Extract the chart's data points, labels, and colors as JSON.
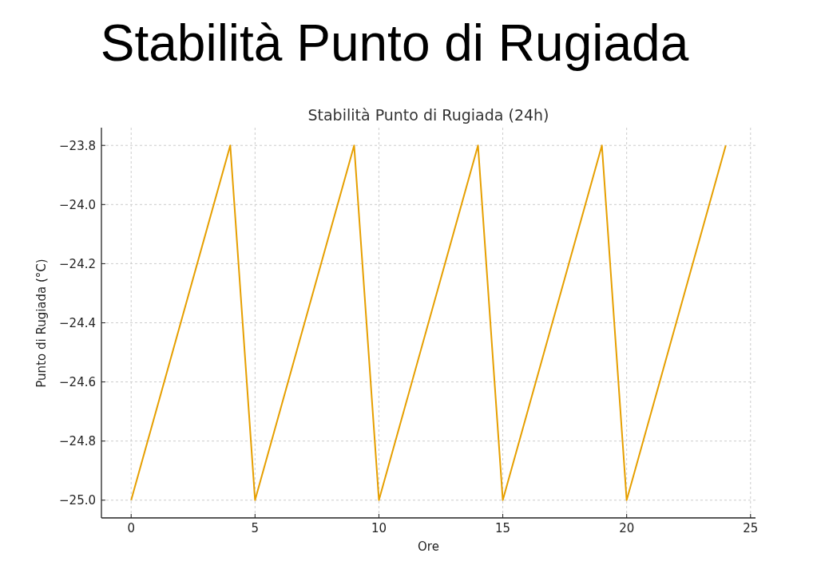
{
  "chart_data": {
    "type": "line",
    "title": "Stabilità Punto di Rugiada",
    "subtitle": "Stabilità Punto di Rugiada (24h)",
    "xlabel": "Ore",
    "ylabel": "Punto di Rugiada (°C)",
    "x": [
      0,
      4,
      5,
      9,
      10,
      14,
      15,
      19,
      20,
      24
    ],
    "series": [
      {
        "color": "#e69f00",
        "values": [
          -25.0,
          -23.8,
          -25.0,
          -23.8,
          -25.0,
          -23.8,
          -25.0,
          -23.8,
          -25.0,
          -23.8
        ]
      }
    ],
    "xlim": [
      -1.2,
      25.2
    ],
    "ylim": [
      -25.06,
      -23.74
    ],
    "xticks": [
      0,
      5,
      10,
      15,
      20,
      25
    ],
    "yticks": [
      {
        "value": -25.0,
        "label": "−25.0"
      },
      {
        "value": -24.8,
        "label": "−24.8"
      },
      {
        "value": -24.6,
        "label": "−24.6"
      },
      {
        "value": -24.4,
        "label": "−24.4"
      },
      {
        "value": -24.2,
        "label": "−24.2"
      },
      {
        "value": -24.0,
        "label": "−24.0"
      },
      {
        "value": -23.8,
        "label": "−23.8"
      }
    ],
    "grid": true,
    "marker": "none",
    "line_style": "solid"
  }
}
